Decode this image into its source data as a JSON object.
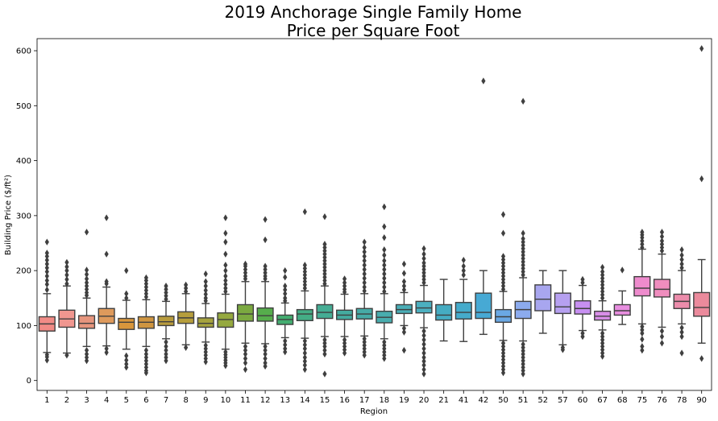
{
  "chart_data": {
    "type": "box",
    "title_line1": "2019 Anchorage Single Family Home",
    "title_line2": "Price per Square Foot",
    "xlabel": "Region",
    "ylabel": "Building Price ($/ft²)",
    "ylim": [
      -18,
      622
    ],
    "yticks": [
      0,
      100,
      200,
      300,
      400,
      500,
      600
    ],
    "grid": false,
    "categories": [
      "1",
      "2",
      "3",
      "4",
      "5",
      "6",
      "7",
      "8",
      "9",
      "10",
      "11",
      "12",
      "13",
      "14",
      "15",
      "16",
      "17",
      "18",
      "19",
      "20",
      "21",
      "41",
      "42",
      "50",
      "51",
      "52",
      "57",
      "60",
      "67",
      "68",
      "75",
      "76",
      "78",
      "90"
    ],
    "colors": [
      "#f18b86",
      "#f0968f",
      "#e6957d",
      "#de9a5c",
      "#d8963c",
      "#cf9540",
      "#b89b3c",
      "#b69e3c",
      "#a6a33e",
      "#95a93f",
      "#7ba940",
      "#56ad4c",
      "#43ad70",
      "#44ad85",
      "#45ad94",
      "#44ab9f",
      "#46aba6",
      "#48adae",
      "#4aaeb7",
      "#4cb0c0",
      "#45acc2",
      "#45abcb",
      "#47a9d4",
      "#6aa8e4",
      "#8cabee",
      "#a8a6ef",
      "#b6a0f0",
      "#c78ff1",
      "#d98ee8",
      "#e88ee0",
      "#ee8bcd",
      "#ef8dbe",
      "#ec8cab",
      "#eb8a9c"
    ],
    "boxes": [
      {
        "q1": 90,
        "med": 103,
        "q3": 116,
        "wlo": 51,
        "whi": 158,
        "outliers": [
          47,
          43,
          37,
          165,
          175,
          182,
          190,
          198,
          205,
          212,
          219,
          226,
          232,
          252
        ]
      },
      {
        "q1": 97,
        "med": 112,
        "q3": 128,
        "wlo": 50,
        "whi": 172,
        "outliers": [
          46,
          176,
          184,
          192,
          200,
          207,
          215
        ]
      },
      {
        "q1": 95,
        "med": 104,
        "q3": 118,
        "wlo": 62,
        "whi": 150,
        "outliers": [
          55,
          48,
          42,
          36,
          155,
          160,
          166,
          172,
          178,
          185,
          193,
          201,
          270
        ]
      },
      {
        "q1": 104,
        "med": 117,
        "q3": 131,
        "wlo": 63,
        "whi": 170,
        "outliers": [
          58,
          51,
          176,
          180,
          230,
          296
        ]
      },
      {
        "q1": 93,
        "med": 106,
        "q3": 113,
        "wlo": 57,
        "whi": 146,
        "outliers": [
          45,
          37,
          30,
          24,
          150,
          158,
          200
        ]
      },
      {
        "q1": 95,
        "med": 106,
        "q3": 116,
        "wlo": 62,
        "whi": 147,
        "outliers": [
          55,
          48,
          42,
          36,
          30,
          24,
          18,
          14,
          152,
          158,
          164,
          170,
          176,
          182,
          187
        ]
      },
      {
        "q1": 100,
        "med": 107,
        "q3": 117,
        "wlo": 76,
        "whi": 144,
        "outliers": [
          70,
          62,
          55,
          48,
          42,
          36,
          148,
          154,
          160,
          166,
          172
        ]
      },
      {
        "q1": 104,
        "med": 114,
        "q3": 125,
        "wlo": 65,
        "whi": 158,
        "outliers": [
          60,
          162,
          168,
          174
        ]
      },
      {
        "q1": 97,
        "med": 104,
        "q3": 114,
        "wlo": 70,
        "whi": 140,
        "outliers": [
          64,
          58,
          52,
          46,
          40,
          34,
          145,
          150,
          157,
          164,
          172,
          180,
          194
        ]
      },
      {
        "q1": 97,
        "med": 111,
        "q3": 123,
        "wlo": 57,
        "whi": 157,
        "outliers": [
          52,
          47,
          42,
          37,
          32,
          27,
          162,
          168,
          175,
          182,
          190,
          200,
          210,
          230,
          252,
          268,
          296
        ]
      },
      {
        "q1": 108,
        "med": 121,
        "q3": 138,
        "wlo": 68,
        "whi": 180,
        "outliers": [
          62,
          55,
          48,
          40,
          32,
          20,
          185,
          190,
          196,
          202,
          208,
          212
        ]
      },
      {
        "q1": 108,
        "med": 118,
        "q3": 132,
        "wlo": 67,
        "whi": 180,
        "outliers": [
          62,
          55,
          48,
          40,
          32,
          26,
          185,
          190,
          196,
          202,
          208,
          256,
          293
        ]
      },
      {
        "q1": 102,
        "med": 111,
        "q3": 119,
        "wlo": 78,
        "whi": 141,
        "outliers": [
          72,
          65,
          58,
          52,
          145,
          150,
          158,
          165,
          172,
          188,
          200
        ]
      },
      {
        "q1": 109,
        "med": 121,
        "q3": 129,
        "wlo": 77,
        "whi": 163,
        "outliers": [
          72,
          65,
          58,
          50,
          42,
          35,
          28,
          20,
          168,
          174,
          180,
          186,
          192,
          198,
          204,
          210,
          307
        ]
      },
      {
        "q1": 113,
        "med": 124,
        "q3": 138,
        "wlo": 80,
        "whi": 172,
        "outliers": [
          74,
          68,
          62,
          55,
          48,
          12,
          176,
          182,
          188,
          194,
          200,
          206,
          212,
          218,
          224,
          230,
          236,
          242,
          248,
          298
        ]
      },
      {
        "q1": 111,
        "med": 119,
        "q3": 128,
        "wlo": 80,
        "whi": 157,
        "outliers": [
          74,
          68,
          62,
          56,
          50,
          161,
          166,
          172,
          178,
          185
        ]
      },
      {
        "q1": 112,
        "med": 121,
        "q3": 131,
        "wlo": 81,
        "whi": 158,
        "outliers": [
          76,
          70,
          64,
          58,
          52,
          46,
          163,
          170,
          178,
          186,
          194,
          202,
          210,
          218,
          226,
          234,
          242,
          252
        ]
      },
      {
        "q1": 105,
        "med": 115,
        "q3": 126,
        "wlo": 76,
        "whi": 158,
        "outliers": [
          70,
          64,
          58,
          52,
          46,
          40,
          162,
          170,
          178,
          186,
          194,
          202,
          210,
          218,
          228,
          238,
          260,
          280,
          316
        ]
      },
      {
        "q1": 122,
        "med": 129,
        "q3": 138,
        "wlo": 100,
        "whi": 160,
        "outliers": [
          95,
          88,
          55,
          165,
          172,
          180,
          195,
          212
        ]
      },
      {
        "q1": 123,
        "med": 132,
        "q3": 144,
        "wlo": 96,
        "whi": 173,
        "outliers": [
          90,
          82,
          74,
          66,
          58,
          50,
          42,
          35,
          28,
          20,
          12,
          178,
          184,
          190,
          196,
          202,
          208,
          214,
          222,
          230,
          240
        ]
      },
      {
        "q1": 110,
        "med": 119,
        "q3": 138,
        "wlo": 72,
        "whi": 184,
        "outliers": []
      },
      {
        "q1": 112,
        "med": 124,
        "q3": 142,
        "wlo": 71,
        "whi": 184,
        "outliers": [
          192,
          200,
          208,
          219
        ]
      },
      {
        "q1": 113,
        "med": 124,
        "q3": 159,
        "wlo": 84,
        "whi": 200,
        "outliers": [
          545
        ]
      },
      {
        "q1": 106,
        "med": 116,
        "q3": 129,
        "wlo": 73,
        "whi": 162,
        "outliers": [
          68,
          62,
          56,
          50,
          44,
          38,
          32,
          26,
          20,
          14,
          166,
          172,
          178,
          184,
          190,
          196,
          202,
          208,
          214,
          220,
          226,
          268,
          302
        ]
      },
      {
        "q1": 113,
        "med": 129,
        "q3": 144,
        "wlo": 72,
        "whi": 187,
        "outliers": [
          66,
          60,
          54,
          48,
          42,
          36,
          30,
          24,
          18,
          12,
          192,
          198,
          204,
          210,
          216,
          222,
          228,
          234,
          240,
          246,
          252,
          258,
          268,
          508
        ]
      },
      {
        "q1": 127,
        "med": 148,
        "q3": 174,
        "wlo": 86,
        "whi": 200,
        "outliers": []
      },
      {
        "q1": 122,
        "med": 134,
        "q3": 159,
        "wlo": 65,
        "whi": 200,
        "outliers": [
          60,
          56
        ]
      },
      {
        "q1": 121,
        "med": 131,
        "q3": 145,
        "wlo": 91,
        "whi": 173,
        "outliers": [
          86,
          80,
          178,
          184
        ]
      },
      {
        "q1": 110,
        "med": 117,
        "q3": 126,
        "wlo": 92,
        "whi": 145,
        "outliers": [
          86,
          80,
          74,
          68,
          62,
          56,
          50,
          44,
          150,
          156,
          162,
          168,
          174,
          180,
          186,
          192,
          198,
          206
        ]
      },
      {
        "q1": 119,
        "med": 127,
        "q3": 138,
        "wlo": 102,
        "whi": 163,
        "outliers": [
          201
        ]
      },
      {
        "q1": 154,
        "med": 168,
        "q3": 189,
        "wlo": 103,
        "whi": 239,
        "outliers": [
          98,
          92,
          86,
          75,
          62,
          55,
          242,
          248,
          254,
          260,
          265,
          270
        ]
      },
      {
        "q1": 152,
        "med": 166,
        "q3": 184,
        "wlo": 97,
        "whi": 230,
        "outliers": [
          90,
          80,
          68,
          236,
          242,
          248,
          254,
          262,
          270
        ]
      },
      {
        "q1": 131,
        "med": 144,
        "q3": 157,
        "wlo": 103,
        "whi": 200,
        "outliers": [
          96,
          88,
          80,
          50,
          205,
          212,
          220,
          228,
          238
        ]
      },
      {
        "q1": 117,
        "med": 133,
        "q3": 160,
        "wlo": 68,
        "whi": 220,
        "outliers": [
          40,
          367,
          604
        ]
      }
    ]
  }
}
